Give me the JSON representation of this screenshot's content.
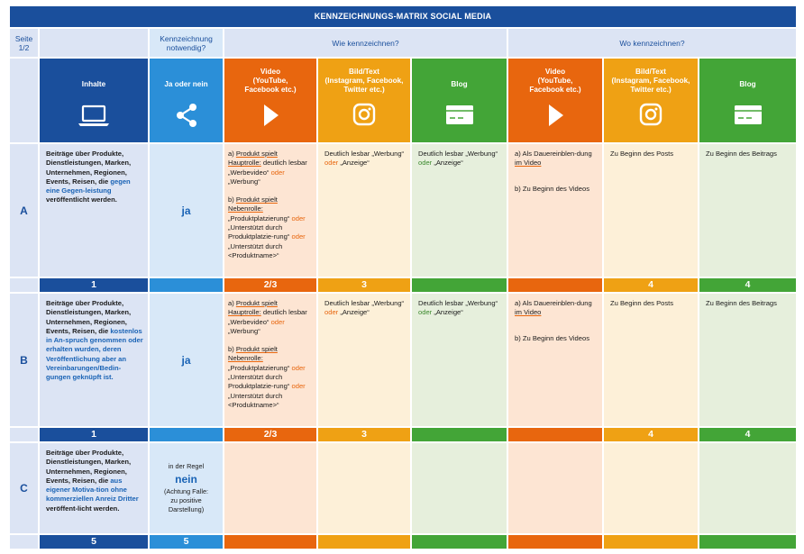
{
  "title": "KENNZEICHNUNGS-MATRIX SOCIAL MEDIA",
  "header": {
    "page_label": "Seite\n1/2",
    "needed_label": "Kennzeichnung\nnotwendig?",
    "how_label": "Wie kennzeichnen?",
    "where_label": "Wo kennzeichnen?"
  },
  "columns": {
    "inhalte": "Inhalte",
    "ja_oder_nein": "Ja oder nein",
    "video": "Video\n(YouTube,\nFacebook etc.)",
    "bildtext": "Bild/Text\n(Instagram, Facebook,\nTwitter etc.)",
    "blog": "Blog",
    "video2": "Video\n(YouTube,\nFacebook etc.)",
    "bildtext2": "Bild/Text\n(Instagram, Facebook,\nTwitter etc.)",
    "blog2": "Blog"
  },
  "icons": {
    "inhalte": "laptop-icon",
    "ja_oder_nein": "share-icon",
    "video": "play-icon",
    "bildtext": "instagram-icon",
    "blog": "browser-window-icon"
  },
  "colors": {
    "blue_dark": "#1a4f9c",
    "blue_mid": "#2b8fd8",
    "orange": "#e8660e",
    "yellow": "#efa114",
    "green": "#43a537"
  },
  "rows": {
    "a": {
      "letter": "A",
      "content_lead": "Beiträge über Produkte, Dienstleistungen, Marken, Unternehmen, Regionen, Events, Reisen, die ",
      "content_highlight": "gegen eine Gegen-leistung",
      "content_tail": " veröffentlicht werden.",
      "needed": "ja",
      "nums": [
        "1",
        "2/3",
        "3",
        "4",
        "4"
      ]
    },
    "b": {
      "letter": "B",
      "content_lead": "Beiträge über Produkte, Dienstleistungen, Marken, Unternehmen, Regionen, Events, Reisen, die ",
      "content_highlight": "kostenlos in An-spruch genommen oder erhalten wurden, deren Veröffentlichung aber an Vereinbarungen/Bedin-gungen geknüpft ist.",
      "content_tail": "",
      "needed": "ja",
      "nums": [
        "1",
        "2/3",
        "3",
        "4",
        "4"
      ]
    },
    "c": {
      "letter": "C",
      "content_lead": "Beiträge über Produkte, Dienstleistungen, Marken, Unternehmen, Regionen, Events, Reisen, die ",
      "content_highlight": "aus eigener Motiva-tion ohne kommerziellen Anreiz Dritter",
      "content_tail": " veröffent-licht werden.",
      "needed_pre": "in der Regel",
      "needed": "nein",
      "needed_note": "(Achtung Falle:\nzu positive\nDarstellung)",
      "nums": [
        "5",
        "5"
      ]
    }
  },
  "how_video": {
    "a_prefix": "a) ",
    "a_label": "Produkt spielt Hauptrolle:",
    "a_text": " deutlich lesbar „Werbevideo“ ",
    "oder": "oder",
    "a_text2": " „Werbung“",
    "b_prefix": "b) ",
    "b_label": "Produkt spielt Nebenrolle:",
    "b_text": " „Produktplatzierung“ ",
    "b_text2": " „Unterstützt durch Produktplatzie-rung“ ",
    "b_text3": " „Unterstützt durch <Produktname>“"
  },
  "how_bild": {
    "line1": "Deutlich lesbar „Werbung“",
    "oder": "oder",
    "line2": " „Anzeige“"
  },
  "how_blog": {
    "line1": "Deutlich lesbar „Werbung“",
    "oder": "oder",
    "line2": " „Anzeige“"
  },
  "where_video": {
    "a_pre": "a) Als Dauereinblen-dung ",
    "a_hl": "im Video",
    "b": "b) Zu Beginn des Videos"
  },
  "where_bild": "Zu Beginn des Posts",
  "where_blog": "Zu Beginn des Beitrags"
}
